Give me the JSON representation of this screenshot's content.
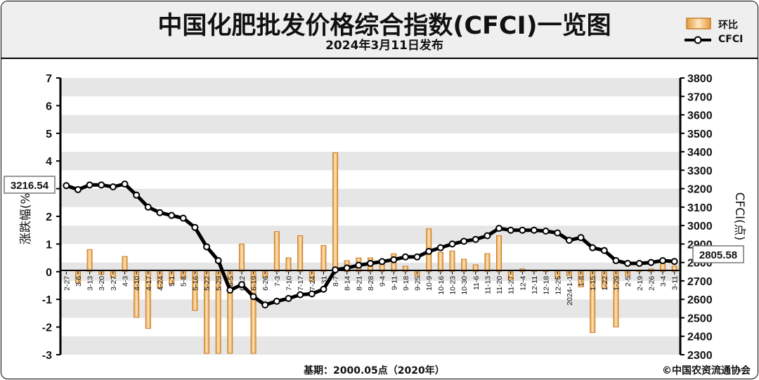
{
  "title": "中国化肥批发价格综合指数(CFCI)一览图",
  "subtitle": "2024年3月11日发布",
  "footer": {
    "base": "基期：2000.05点（2020年）",
    "copyright": "©中国农资流通协会"
  },
  "colors": {
    "bar_fill": "#f3b35a",
    "bar_fill_light": "#fde7bf",
    "bar_edge": "#c77d2c",
    "line": "#000000",
    "marker_fill": "#ffffff",
    "band_dark": "#e6e6e6",
    "band_light": "#ffffff",
    "header_bg": "#efefef"
  },
  "chart_data": {
    "type": "bar+line",
    "categories": [
      "2-27",
      "3-6",
      "3-13",
      "3-20",
      "3-27",
      "4-3",
      "4-10",
      "4-17",
      "4-24",
      "5-1",
      "5-8",
      "5-16",
      "5-22",
      "5-29",
      "6-5",
      "6-12",
      "6-19",
      "6-26",
      "7-3",
      "7-10",
      "7-17",
      "7-24",
      "7-31",
      "8-7",
      "8-14",
      "8-21",
      "8-28",
      "9-4",
      "9-11",
      "9-18",
      "9-25",
      "10-9",
      "10-16",
      "10-23",
      "10-30",
      "11-6",
      "11-13",
      "11-20",
      "11-27",
      "12-4",
      "12-11",
      "12-18",
      "12-25",
      "2024-1-1",
      "1-8",
      "1-15",
      "1-22",
      "1-29",
      "2-5",
      "2-19",
      "2-26",
      "3-4",
      "3-11"
    ],
    "x_tick_labels": [
      "2-27",
      "3-6",
      "3-13",
      "3-20",
      "3-27",
      "4-3",
      "4-10",
      "4-17",
      "4-24",
      "5-1",
      "5-8",
      "5-16",
      "5-22",
      "5-29",
      "6-5",
      "6-12",
      "6-19",
      "6-26",
      "7-3",
      "7-10",
      "7-17",
      "7-24",
      "7-31",
      "8-7",
      "8-14",
      "8-21",
      "8-28",
      "9-4",
      "9-11",
      "9-18",
      "9-25",
      "10-9",
      "10-16",
      "10-23",
      "10-30",
      "11-6",
      "11-13",
      "11-20",
      "11-27",
      "12-4",
      "12-11",
      "12-18",
      "12-25",
      "2024-1-1",
      "1-8",
      "1-15",
      "1-22",
      "1-29",
      "2-5",
      "2-19",
      "2-26",
      "3-4",
      "3-11"
    ],
    "series": [
      {
        "name": "环比",
        "type": "bar",
        "axis": "left",
        "values": [
          0,
          -0.4,
          0.8,
          -0.1,
          -0.2,
          0.55,
          -1.65,
          -2.05,
          -0.6,
          -0.45,
          -0.25,
          -1.4,
          -2.95,
          -2.95,
          -2.95,
          1.0,
          -2.95,
          -0.2,
          1.45,
          0.5,
          1.3,
          -0.35,
          0.95,
          4.3,
          0.4,
          0.5,
          0.5,
          0.4,
          0.65,
          0.2,
          -0.15,
          1.55,
          0.7,
          0.75,
          0.45,
          0.25,
          0.65,
          1.3,
          -0.3,
          0.1,
          0.05,
          0.05,
          -0.25,
          -0.15,
          -0.55,
          -2.2,
          -0.6,
          -2.0,
          -0.15,
          0.05,
          0.1,
          0.45,
          0.2
        ]
      },
      {
        "name": "CFCI",
        "type": "line",
        "axis": "right",
        "values": [
          3216.54,
          3195,
          3220,
          3220,
          3210,
          3225,
          3165,
          3100,
          3070,
          3055,
          3040,
          2990,
          2885,
          2810,
          2650,
          2680,
          2615,
          2570,
          2590,
          2605,
          2625,
          2630,
          2655,
          2760,
          2770,
          2785,
          2795,
          2805,
          2815,
          2830,
          2830,
          2860,
          2880,
          2900,
          2915,
          2925,
          2945,
          2985,
          2975,
          2975,
          2975,
          2970,
          2960,
          2920,
          2935,
          2880,
          2865,
          2810,
          2795,
          2795,
          2800,
          2810,
          2805.58
        ]
      }
    ],
    "y_left": {
      "label": "涨跌幅(%)",
      "min": -3,
      "max": 7,
      "ticks": [
        -3,
        -2,
        -1,
        0,
        1,
        2,
        3,
        4,
        5,
        6,
        7
      ]
    },
    "y_right": {
      "label": "CFCI(点)",
      "min": 2300,
      "max": 3800,
      "ticks": [
        2300,
        2400,
        2500,
        2600,
        2700,
        2800,
        2900,
        3000,
        3100,
        3200,
        3300,
        3400,
        3500,
        3600,
        3700,
        3800
      ]
    },
    "callouts": {
      "start": "3216.54",
      "end": "2805.58"
    },
    "legend_position": "top-right",
    "grid": "horizontal bands"
  }
}
